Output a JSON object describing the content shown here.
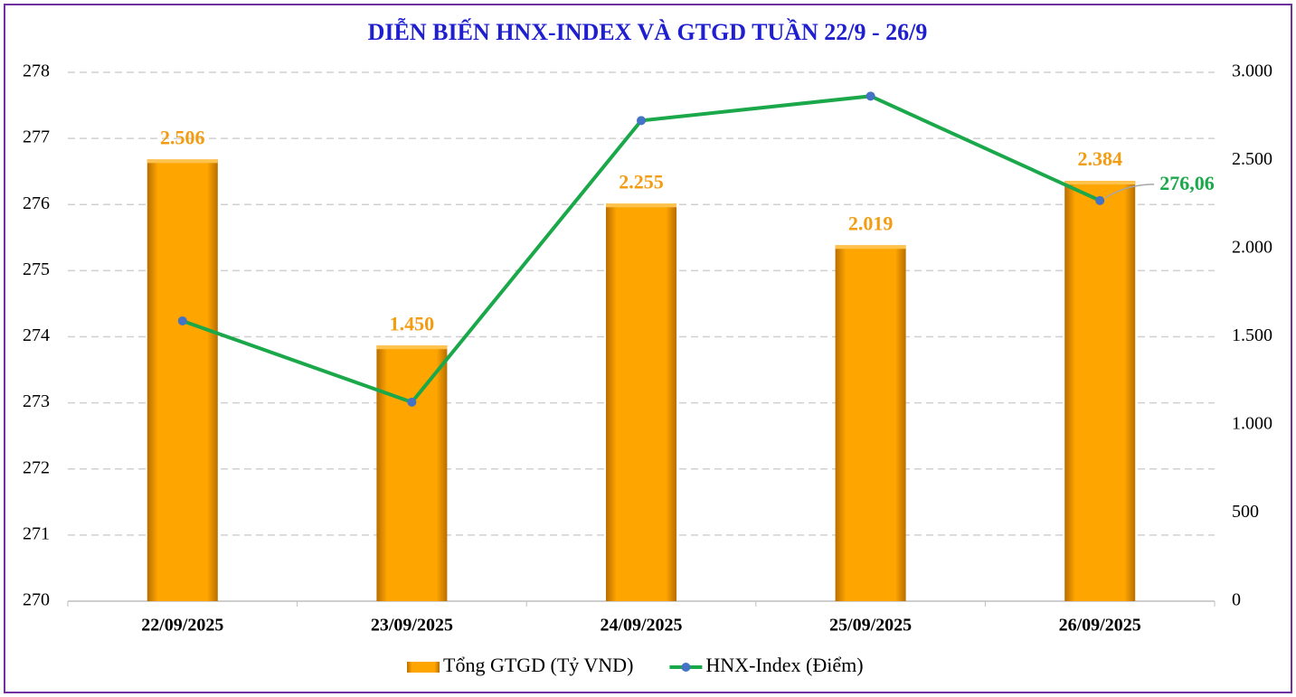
{
  "chart_data": {
    "type": "combo",
    "title": "DIỄN BIẾN HNX-INDEX VÀ GTGD TUẦN 22/9 - 26/9",
    "categories": [
      "22/09/2025",
      "23/09/2025",
      "24/09/2025",
      "25/09/2025",
      "26/09/2025"
    ],
    "series": [
      {
        "name": "Tổng GTGD (Tỷ VND)",
        "type": "bar",
        "axis": "y2",
        "color": "#ffa500",
        "values": [
          2506,
          1450,
          2255,
          2019,
          2384
        ],
        "value_labels": [
          "2.506",
          "1.450",
          "2.255",
          "2.019",
          "2.384"
        ]
      },
      {
        "name": "HNX-Index (Điểm)",
        "type": "line",
        "axis": "y",
        "color": "#1aa84a",
        "marker_color": "#4472c4",
        "values": [
          274.24,
          273.01,
          277.27,
          277.64,
          276.06
        ],
        "value_labels": [
          null,
          null,
          null,
          null,
          "276,06"
        ]
      }
    ],
    "ylim": [
      270,
      278
    ],
    "yticks": [
      270,
      271,
      272,
      273,
      274,
      275,
      276,
      277,
      278
    ],
    "y2lim": [
      0,
      3000
    ],
    "y2ticks": [
      0,
      500,
      {
        "value": 1000,
        "label": "1.000"
      },
      {
        "value": 1500,
        "label": "1.500"
      },
      {
        "value": 2000,
        "label": "2.000"
      },
      {
        "value": 2500,
        "label": "2.500"
      },
      {
        "value": 3000,
        "label": "3.000"
      }
    ],
    "grid": true,
    "legend": "bottom"
  }
}
